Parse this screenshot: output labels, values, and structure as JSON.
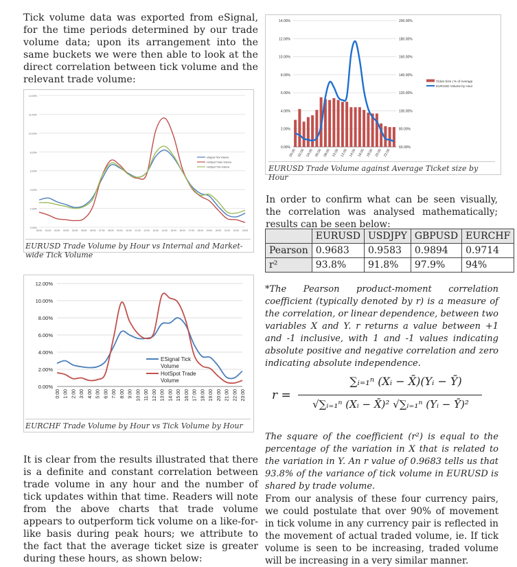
{
  "intro_paragraph": "Tick volume data was exported from eSignal, for the time periods determined by our trade volume data; upon its arrangement into the same buckets we were then able to look at the direct correlation between tick volume and the relevant trade volume:",
  "figure1": {
    "caption": "EURUSD Trade Volume by Hour vs Internal and Market-wide Tick Volume",
    "chart_data": {
      "type": "line",
      "x": [
        "00:00",
        "01:00",
        "02:00",
        "03:00",
        "04:00",
        "05:00",
        "06:00",
        "07:00",
        "08:00",
        "09:00",
        "10:00",
        "11:00",
        "12:00",
        "13:00",
        "14:00",
        "15:00",
        "16:00",
        "17:00",
        "18:00",
        "19:00",
        "20:00",
        "21:00",
        "22:00",
        "23:00"
      ],
      "ylim": [
        0,
        14
      ],
      "yticks": [
        "0.00%",
        "2.00%",
        "4.00%",
        "6.00%",
        "8.00%",
        "10.00%",
        "12.00%",
        "14.00%"
      ],
      "series": [
        {
          "name": "eSignal Tick Volume",
          "color": "#4a7ebb",
          "values": [
            2.9,
            3.1,
            2.7,
            2.4,
            2.1,
            2.3,
            3.2,
            5.1,
            6.6,
            6.3,
            5.7,
            5.3,
            5.8,
            7.5,
            8.2,
            7.4,
            5.9,
            4.4,
            3.6,
            3.3,
            2.2,
            1.3,
            1.1,
            1.5
          ]
        },
        {
          "name": "HotSpot Trade Volume",
          "color": "#c0504d",
          "values": [
            1.6,
            1.3,
            0.9,
            0.8,
            0.7,
            0.9,
            2.2,
            5.4,
            7.1,
            6.6,
            5.6,
            5.2,
            5.6,
            10.2,
            11.6,
            9.7,
            6.2,
            4.2,
            3.3,
            2.8,
            1.8,
            0.9,
            0.8,
            0.5
          ]
        },
        {
          "name": "HotSpot Tick Volume",
          "color": "#9bbb59",
          "values": [
            2.6,
            2.6,
            2.4,
            2.2,
            2.0,
            2.2,
            3.0,
            5.4,
            6.8,
            6.4,
            5.6,
            5.3,
            5.8,
            7.9,
            8.6,
            7.6,
            5.9,
            4.3,
            3.4,
            3.5,
            2.7,
            1.6,
            1.5,
            1.8
          ]
        }
      ]
    }
  },
  "figure2": {
    "caption": "EURUSD Trade Volume against Average Ticket size by Hour",
    "chart_data": {
      "type": "bar",
      "categories": [
        "00:00",
        "01:00",
        "02:00",
        "03:00",
        "04:00",
        "05:00",
        "06:00",
        "07:00",
        "08:00",
        "09:00",
        "10:00",
        "11:00",
        "12:00",
        "13:00",
        "14:00",
        "15:00",
        "16:00",
        "17:00",
        "18:00",
        "19:00",
        "20:00",
        "21:00",
        "22:00",
        "23:00"
      ],
      "xticks": [
        "00:00",
        "02:00",
        "04:00",
        "06:00",
        "08:00",
        "10:00",
        "12:00",
        "14:00",
        "16:00",
        "18:00",
        "20:00",
        "22:00"
      ],
      "ylim_left": [
        0,
        14
      ],
      "yticks_left": [
        "0.00%",
        "2.00%",
        "4.00%",
        "6.00%",
        "8.00%",
        "10.00%",
        "12.00%",
        "14.00%"
      ],
      "ylim_right": [
        60,
        200
      ],
      "yticks_right": [
        "60.00%",
        "80.00%",
        "100.00%",
        "120.00%",
        "140.00%",
        "160.00%",
        "180.00%",
        "200.00%"
      ],
      "series": [
        {
          "name": "Ticket Size | % of Average",
          "color": "#c0504d",
          "axis": "right",
          "values": [
            90,
            102,
            88,
            93,
            95,
            101,
            115,
            113,
            112,
            114,
            112,
            110,
            110,
            104,
            104,
            104,
            101,
            98,
            97,
            97,
            86,
            83,
            82,
            82
          ]
        },
        {
          "name": "EURUSD Volume by Hour",
          "color": "#1f6fd0",
          "axis": "left",
          "values": [
            1.5,
            1.3,
            0.9,
            0.8,
            0.7,
            1.0,
            2.3,
            5.5,
            7.2,
            6.6,
            5.5,
            5.2,
            5.6,
            10.3,
            11.7,
            9.6,
            6.2,
            4.2,
            3.3,
            2.8,
            1.8,
            0.9,
            0.8,
            0.6
          ]
        }
      ]
    }
  },
  "right_paragraph1": "In order to confirm what can be seen visually, the correlation was analysed mathematically; results can be seen below:",
  "table": {
    "headers": [
      "",
      "EURUSD",
      "USDJPY",
      "GBPUSD",
      "EURCHF"
    ],
    "rows": [
      [
        "Pearson",
        "0.9683",
        "0.9583",
        "0.9894",
        "0.9714"
      ],
      [
        "r²",
        "93.8%",
        "91.8%",
        "97.9%",
        "94%"
      ]
    ]
  },
  "pearson_note": "*The Pearson product-moment correlation coefficient (typically denoted by r) is a measure of the correlation, or linear dependence, between two variables X and Y. r returns a value between +1 and -1 inclusive, with 1 and -1 values indicating absolute positive and negative correlation and zero indicating absolute independence.",
  "formula": {
    "lhs": "r =",
    "numerator": "∑ᵢ₌₁ⁿ (Xᵢ − X̄)(Yᵢ − Ȳ)",
    "denominator": "√∑ᵢ₌₁ⁿ (Xᵢ − X̄)² √∑ᵢ₌₁ⁿ (Yᵢ − Ȳ)²"
  },
  "figure3": {
    "caption": "EURCHF Trade Volume by Hour vs Tick Volume by Hour",
    "chart_data": {
      "type": "line",
      "x": [
        "0:00",
        "1:00",
        "2:00",
        "3:00",
        "4:00",
        "5:00",
        "6:00",
        "7:00",
        "8:00",
        "9:00",
        "10:00",
        "11:00",
        "12:00",
        "13:00",
        "14:00",
        "15:00",
        "16:00",
        "17:00",
        "18:00",
        "19:00",
        "20:00",
        "21:00",
        "22:00",
        "23:00"
      ],
      "ylim": [
        0,
        12
      ],
      "yticks": [
        "0.00%",
        "2.00%",
        "4.00%",
        "6.00%",
        "8.00%",
        "10.00%",
        "12.00%"
      ],
      "series": [
        {
          "name": "ESignal Tick Volume",
          "color": "#4a7ebb",
          "values": [
            2.7,
            3.0,
            2.5,
            2.3,
            2.2,
            2.3,
            2.9,
            4.6,
            6.4,
            6.0,
            5.6,
            5.6,
            5.9,
            7.3,
            7.4,
            8.0,
            7.1,
            4.9,
            3.5,
            3.4,
            2.4,
            1.1,
            1.0,
            1.8
          ]
        },
        {
          "name": "HotSpot Trade Volume",
          "color": "#c0504d",
          "values": [
            1.6,
            1.4,
            0.9,
            1.0,
            0.7,
            0.8,
            1.5,
            5.6,
            9.8,
            7.6,
            6.2,
            5.6,
            6.2,
            10.6,
            10.3,
            9.8,
            7.6,
            3.7,
            2.4,
            2.1,
            1.2,
            0.5,
            0.4,
            0.7
          ]
        }
      ]
    }
  },
  "left_paragraph2": "It is clear from the results illustrated that there is a definite and constant correlation between trade volume in any hour and the number of tick updates within that time. Readers will note from the above charts that trade volume appears to outperform tick volume on a like-for-like basis during peak hours; we attribute to the fact that the average ticket size is greater during these hours, as shown below:",
  "r2_note": "The square of the coefficient (r²) is equal to the percentage of the variation in X that is related to the variation in Y. An r value of 0.9683 tells us that 93.8% of the variance of tick volume in EURUSD is shared by trade volume.",
  "right_paragraph2": "From our analysis of these four currency pairs, we could postulate that over 90% of movement in tick volume in any currency pair is reflected in the movement of actual traded volume, ie. If tick volume is seen to be increasing, traded volume will be increasing in a very similar manner."
}
